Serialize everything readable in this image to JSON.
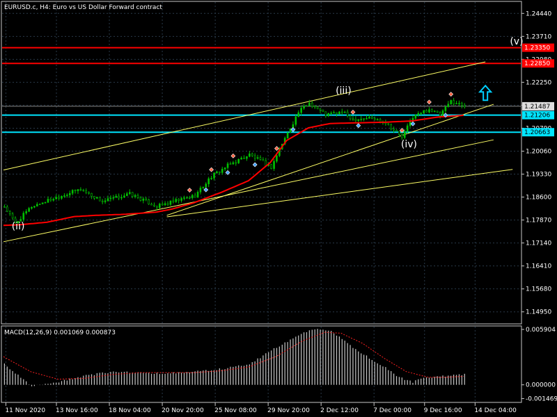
{
  "header": {
    "symbol_info": "EURUSD.c, H4:  Euro vs US Dollar Forward contract"
  },
  "colors": {
    "background": "#000000",
    "grid": "#2a3a4a",
    "axis": "#c8c8c8",
    "text": "#ffffff",
    "candle": "#00c000",
    "ma": "#ff0000",
    "channel": "#ffff66",
    "support": "#00e5ff",
    "resistance": "#ff0000",
    "macd_hist": "#c8c8c8",
    "macd_signal": "#ff2020",
    "arrow": "#00cfff"
  },
  "chart_data": [
    {
      "type": "line",
      "title": "EURUSD.c, H4:  Euro vs US Dollar Forward contract",
      "x_tick_labels": [
        "11 Nov 2020",
        "13 Nov 16:00",
        "18 Nov 04:00",
        "20 Nov 20:00",
        "25 Nov 08:00",
        "29 Nov 20:00",
        "2 Dec 12:00",
        "7 Dec 00:00",
        "9 Dec 16:00",
        "14 Dec 04:00"
      ],
      "y_tick_labels": [
        "1.24440",
        "1.23710",
        "1.22980",
        "1.22250",
        "1.21520",
        "1.20790",
        "1.20060",
        "1.19330",
        "1.18600",
        "1.17870",
        "1.17140",
        "1.16410",
        "1.15680",
        "1.14950"
      ],
      "ylim": [
        1.1459,
        1.248
      ],
      "n_bars": 170,
      "price_series": {
        "x": [
          0,
          4,
          10,
          18,
          28,
          36,
          46,
          56,
          64,
          70,
          76,
          82,
          90,
          98,
          102,
          108,
          112,
          118,
          124,
          128,
          134,
          140,
          146,
          150,
          156,
          160,
          164,
          169
        ],
        "y": [
          1.183,
          1.1776,
          1.183,
          1.1856,
          1.1885,
          1.1846,
          1.187,
          1.183,
          1.185,
          1.1865,
          1.1925,
          1.196,
          1.1995,
          1.1955,
          1.203,
          1.213,
          1.216,
          1.2122,
          1.213,
          1.2108,
          1.2112,
          1.2098,
          1.205,
          1.2115,
          1.214,
          1.212,
          1.2165,
          1.215
        ]
      },
      "moving_average": {
        "x": [
          0,
          6,
          16,
          26,
          34,
          44,
          56,
          62,
          70,
          80,
          90,
          98,
          104,
          112,
          120,
          130,
          140,
          150,
          160,
          169
        ],
        "y": [
          1.177,
          1.1772,
          1.178,
          1.1798,
          1.1802,
          1.1805,
          1.1812,
          1.1822,
          1.1842,
          1.1875,
          1.1912,
          1.197,
          1.204,
          1.208,
          1.2094,
          1.2096,
          1.2098,
          1.2102,
          1.2115,
          1.212
        ]
      },
      "trendlines": [
        {
          "x": [
            0,
            177
          ],
          "y": [
            1.1946,
            1.229
          ]
        },
        {
          "x": [
            0,
            180
          ],
          "y": [
            1.1718,
            1.2042
          ]
        },
        {
          "x": [
            60,
            180
          ],
          "y": [
            1.1802,
            1.2155
          ]
        },
        {
          "x": [
            60,
            187
          ],
          "y": [
            1.1797,
            1.1948
          ]
        }
      ],
      "horizontal_levels": [
        {
          "value": 1.2335,
          "label": "1.23350",
          "kind": "resistance"
        },
        {
          "value": 1.2285,
          "label": "1.22850",
          "kind": "resistance"
        },
        {
          "value": 1.21487,
          "label": "1.21487",
          "kind": "current"
        },
        {
          "value": 1.21206,
          "label": "1.21206",
          "kind": "support"
        },
        {
          "value": 1.20663,
          "label": "1.20663",
          "kind": "support"
        }
      ],
      "wave_labels": [
        {
          "text": "(ii)",
          "x": 3,
          "y": 1.1757
        },
        {
          "text": "(iii)",
          "x": 122,
          "y": 1.2188
        },
        {
          "text": "(iv)",
          "x": 146,
          "y": 1.2018
        },
        {
          "text": "(v)",
          "x": 186,
          "y": 1.2345
        }
      ],
      "up_arrow": {
        "x": 177,
        "y": 1.219
      }
    },
    {
      "type": "bar",
      "title": "MACD(12,26,9) 0.001069 0.000873",
      "y_tick_labels": [
        "0.005904",
        "0.000000",
        "-0.001469"
      ],
      "ylim": [
        -0.0018,
        0.0062
      ],
      "histogram": {
        "x": [
          0,
          10,
          20,
          30,
          40,
          50,
          60,
          70,
          80,
          90,
          100,
          110,
          115,
          120,
          130,
          140,
          145,
          150,
          155,
          160,
          165,
          169
        ],
        "y": [
          0.0022,
          -0.0002,
          0.0003,
          0.001,
          0.0014,
          0.0013,
          0.0012,
          0.0014,
          0.0017,
          0.0022,
          0.004,
          0.0056,
          0.0059,
          0.0057,
          0.0036,
          0.0018,
          0.0008,
          0.0003,
          0.0008,
          0.0009,
          0.001,
          0.0011
        ]
      },
      "signal": {
        "x": [
          0,
          10,
          20,
          30,
          40,
          50,
          60,
          70,
          80,
          90,
          100,
          110,
          118,
          124,
          132,
          140,
          148,
          156,
          162,
          169
        ],
        "y": [
          0.003,
          0.0014,
          0.0006,
          0.0007,
          0.0011,
          0.0013,
          0.0013,
          0.0013,
          0.0015,
          0.0019,
          0.003,
          0.0047,
          0.0056,
          0.0055,
          0.0044,
          0.0028,
          0.0014,
          0.0008,
          0.0008,
          0.0009
        ]
      }
    }
  ]
}
